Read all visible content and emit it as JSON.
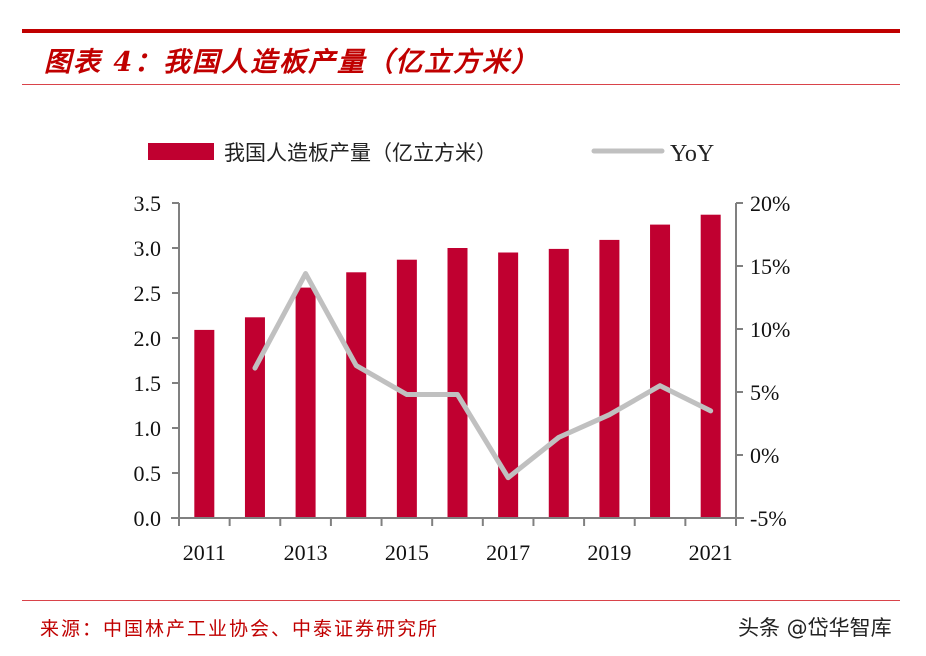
{
  "header": {
    "figure_title": "图表 4：我国人造板产量（亿立方米）"
  },
  "footer": {
    "source": "来源：中国林产工业协会、中泰证券研究所",
    "watermark": "头条 @岱华智库"
  },
  "colors": {
    "accent": "#c00000",
    "bar": "#c00030",
    "line": "#c0c0c0",
    "axis": "#808080"
  },
  "chart_data": {
    "type": "bar",
    "title": "我国人造板产量（亿立方米）",
    "categories": [
      "2011",
      "2012",
      "2013",
      "2014",
      "2015",
      "2016",
      "2017",
      "2018",
      "2019",
      "2020",
      "2021"
    ],
    "x_tick_labels": [
      "2011",
      "2013",
      "2015",
      "2017",
      "2019",
      "2021"
    ],
    "series": [
      {
        "name": "我国人造板产量（亿立方米）",
        "type": "bar",
        "axis": "left",
        "values": [
          2.09,
          2.23,
          2.56,
          2.73,
          2.87,
          3.0,
          2.95,
          2.99,
          3.09,
          3.26,
          3.37
        ]
      },
      {
        "name": "YoY",
        "type": "line",
        "axis": "right",
        "values": [
          null,
          6.9,
          14.4,
          7.1,
          4.8,
          4.8,
          -1.8,
          1.4,
          3.2,
          5.5,
          3.5
        ]
      }
    ],
    "y_left": {
      "label": "",
      "lim": [
        0,
        3.5
      ],
      "ticks": [
        "0.0",
        "0.5",
        "1.0",
        "1.5",
        "2.0",
        "2.5",
        "3.0",
        "3.5"
      ]
    },
    "y_right": {
      "label": "",
      "lim": [
        -5,
        20
      ],
      "ticks": [
        "-5%",
        "0%",
        "5%",
        "10%",
        "15%",
        "20%"
      ]
    },
    "xlabel": "",
    "grid": false,
    "legend": {
      "position": "top",
      "entries": [
        "我国人造板产量（亿立方米）",
        "YoY"
      ]
    }
  }
}
